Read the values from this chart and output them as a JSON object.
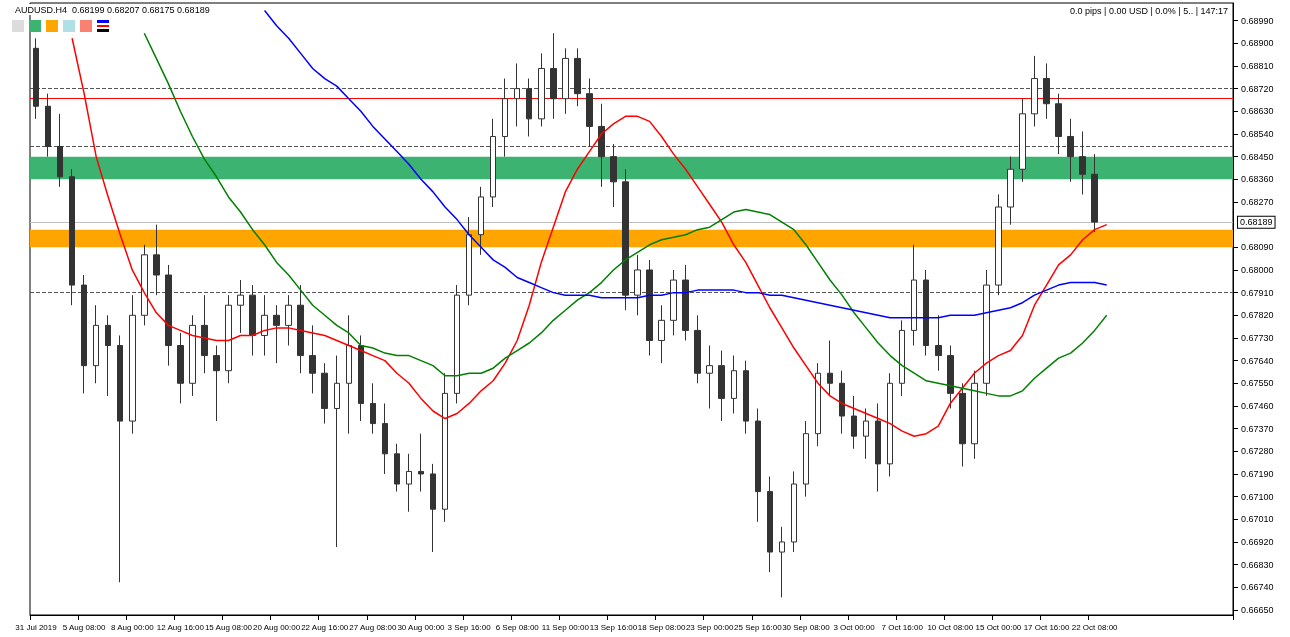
{
  "chart_data": {
    "type": "candlestick",
    "title": "AUDUSD.H4  0.68199 0.68207 0.68175 0.68189",
    "annotations": [
      "0.0 pips | 0.00 USD | 0.0% | 5.. | 147:17"
    ],
    "categories": [
      "31 Jul 2019",
      null,
      null,
      null,
      "5 Aug 08:00",
      null,
      null,
      null,
      "8 Aug 00:00",
      null,
      null,
      null,
      "12 Aug 16:00",
      null,
      null,
      null,
      "15 Aug 08:00",
      null,
      null,
      null,
      "20 Aug 00:00",
      null,
      null,
      null,
      "22 Aug 16:00",
      null,
      null,
      null,
      "27 Aug 08:00",
      null,
      null,
      null,
      "30 Aug 00:00",
      null,
      null,
      null,
      "3 Sep 16:00",
      null,
      null,
      null,
      "6 Sep 08:00",
      null,
      null,
      null,
      "11 Sep 00:00",
      null,
      null,
      null,
      "13 Sep 16:00",
      null,
      null,
      null,
      "18 Sep 08:00",
      null,
      null,
      null,
      "23 Sep 00:00",
      null,
      null,
      null,
      "25 Sep 16:00",
      null,
      null,
      null,
      "30 Sep 08:00",
      null,
      null,
      null,
      "3 Oct 00:00",
      null,
      null,
      null,
      "7 Oct 16:00",
      null,
      null,
      null,
      "10 Oct 08:00",
      null,
      null,
      null,
      "15 Oct 00:00",
      null,
      null,
      null,
      "17 Oct 16:00",
      null,
      null,
      null,
      "22 Oct 08:00",
      null,
      null,
      null,
      null,
      null,
      null,
      null,
      null,
      null,
      null,
      null
    ],
    "color": "#333333",
    "ohlc": [
      [
        0.6888,
        0.6892,
        0.686,
        0.6865
      ],
      [
        0.6865,
        0.687,
        0.6845,
        0.6849
      ],
      [
        0.6849,
        0.6862,
        0.6833,
        0.6837
      ],
      [
        0.6837,
        0.684,
        0.6786,
        0.6794
      ],
      [
        0.6794,
        0.6798,
        0.6751,
        0.6762
      ],
      [
        0.6762,
        0.6786,
        0.6755,
        0.6778
      ],
      [
        0.6778,
        0.6782,
        0.675,
        0.677
      ],
      [
        0.677,
        0.6774,
        0.6676,
        0.674
      ],
      [
        0.674,
        0.679,
        0.6735,
        0.6782
      ],
      [
        0.6782,
        0.681,
        0.6778,
        0.6806
      ],
      [
        0.6806,
        0.6818,
        0.679,
        0.6798
      ],
      [
        0.6798,
        0.6802,
        0.6762,
        0.677
      ],
      [
        0.677,
        0.6775,
        0.6747,
        0.6755
      ],
      [
        0.6755,
        0.6782,
        0.675,
        0.6778
      ],
      [
        0.6778,
        0.679,
        0.6759,
        0.6766
      ],
      [
        0.6766,
        0.677,
        0.674,
        0.676
      ],
      [
        0.676,
        0.679,
        0.6755,
        0.6786
      ],
      [
        0.6786,
        0.6796,
        0.6775,
        0.679
      ],
      [
        0.679,
        0.6794,
        0.6766,
        0.6774
      ],
      [
        0.6774,
        0.679,
        0.6766,
        0.6782
      ],
      [
        0.6782,
        0.6786,
        0.6763,
        0.6778
      ],
      [
        0.6778,
        0.679,
        0.677,
        0.6786
      ],
      [
        0.6786,
        0.6794,
        0.6759,
        0.6766
      ],
      [
        0.6766,
        0.6778,
        0.6751,
        0.6759
      ],
      [
        0.6759,
        0.6763,
        0.6739,
        0.6745
      ],
      [
        0.6745,
        0.6766,
        0.669,
        0.6755
      ],
      [
        0.6755,
        0.6782,
        0.6735,
        0.677
      ],
      [
        0.677,
        0.6774,
        0.674,
        0.6747
      ],
      [
        0.6747,
        0.6755,
        0.6735,
        0.6739
      ],
      [
        0.6739,
        0.6747,
        0.6719,
        0.6727
      ],
      [
        0.6727,
        0.6731,
        0.6712,
        0.6715
      ],
      [
        0.6715,
        0.6727,
        0.6704,
        0.672
      ],
      [
        0.672,
        0.6735,
        0.6712,
        0.6719
      ],
      [
        0.6719,
        0.6723,
        0.6688,
        0.6705
      ],
      [
        0.6705,
        0.6759,
        0.67,
        0.6751
      ],
      [
        0.6751,
        0.6794,
        0.6747,
        0.679
      ],
      [
        0.679,
        0.6821,
        0.6786,
        0.6814
      ],
      [
        0.6814,
        0.6833,
        0.6806,
        0.6829
      ],
      [
        0.6829,
        0.686,
        0.6825,
        0.6853
      ],
      [
        0.6853,
        0.6876,
        0.6845,
        0.6868
      ],
      [
        0.6868,
        0.6882,
        0.6857,
        0.6872
      ],
      [
        0.6872,
        0.6876,
        0.6853,
        0.686
      ],
      [
        0.686,
        0.6886,
        0.6857,
        0.688
      ],
      [
        0.688,
        0.6894,
        0.686,
        0.6868
      ],
      [
        0.6868,
        0.6888,
        0.6862,
        0.6884
      ],
      [
        0.6884,
        0.6888,
        0.6865,
        0.687
      ],
      [
        0.687,
        0.6876,
        0.6849,
        0.6857
      ],
      [
        0.6857,
        0.6866,
        0.6833,
        0.6845
      ],
      [
        0.6845,
        0.685,
        0.6825,
        0.6835
      ],
      [
        0.6835,
        0.684,
        0.6784,
        0.679
      ],
      [
        0.679,
        0.6806,
        0.6782,
        0.68
      ],
      [
        0.68,
        0.6804,
        0.6766,
        0.6772
      ],
      [
        0.6772,
        0.6786,
        0.6763,
        0.678
      ],
      [
        0.678,
        0.68,
        0.6774,
        0.6796
      ],
      [
        0.6796,
        0.6802,
        0.6772,
        0.6776
      ],
      [
        0.6776,
        0.6782,
        0.6755,
        0.6759
      ],
      [
        0.6759,
        0.677,
        0.6745,
        0.6762
      ],
      [
        0.6762,
        0.6768,
        0.674,
        0.6749
      ],
      [
        0.6749,
        0.6766,
        0.6743,
        0.676
      ],
      [
        0.676,
        0.6764,
        0.6735,
        0.674
      ],
      [
        0.674,
        0.6745,
        0.67,
        0.6712
      ],
      [
        0.6712,
        0.6718,
        0.668,
        0.6688
      ],
      [
        0.6688,
        0.6698,
        0.667,
        0.6692
      ],
      [
        0.6692,
        0.672,
        0.6688,
        0.6715
      ],
      [
        0.6715,
        0.674,
        0.671,
        0.6735
      ],
      [
        0.6735,
        0.6763,
        0.673,
        0.6759
      ],
      [
        0.6759,
        0.6772,
        0.675,
        0.6755
      ],
      [
        0.6755,
        0.676,
        0.6735,
        0.6742
      ],
      [
        0.6742,
        0.675,
        0.6729,
        0.6734
      ],
      [
        0.6734,
        0.6745,
        0.6725,
        0.674
      ],
      [
        0.674,
        0.6747,
        0.6712,
        0.6723
      ],
      [
        0.6723,
        0.6759,
        0.6718,
        0.6755
      ],
      [
        0.6755,
        0.678,
        0.675,
        0.6776
      ],
      [
        0.6776,
        0.681,
        0.677,
        0.6796
      ],
      [
        0.6796,
        0.68,
        0.6766,
        0.677
      ],
      [
        0.677,
        0.6782,
        0.676,
        0.6766
      ],
      [
        0.6766,
        0.677,
        0.6745,
        0.6751
      ],
      [
        0.6751,
        0.6755,
        0.6722,
        0.6731
      ],
      [
        0.6731,
        0.676,
        0.6725,
        0.6755
      ],
      [
        0.6755,
        0.68,
        0.675,
        0.6794
      ],
      [
        0.6794,
        0.683,
        0.679,
        0.6825
      ],
      [
        0.6825,
        0.6845,
        0.6818,
        0.684
      ],
      [
        0.684,
        0.6868,
        0.6835,
        0.6862
      ],
      [
        0.6862,
        0.6885,
        0.6857,
        0.6876
      ],
      [
        0.6876,
        0.6882,
        0.686,
        0.6866
      ],
      [
        0.6866,
        0.687,
        0.6846,
        0.6853
      ],
      [
        0.6853,
        0.686,
        0.6835,
        0.6845
      ],
      [
        0.6845,
        0.6855,
        0.683,
        0.6838
      ],
      [
        0.6838,
        0.6846,
        0.6815,
        0.6819
      ],
      null,
      null,
      null,
      null,
      null,
      null,
      null,
      null,
      null,
      null,
      null
    ],
    "series": [
      {
        "type": "line",
        "color": "#ff0000",
        "values": [
          null,
          null,
          null,
          0.6892,
          0.687,
          0.6845,
          0.6829,
          0.6814,
          0.68,
          0.6791,
          0.6783,
          0.6778,
          0.6776,
          0.6774,
          0.6773,
          0.6772,
          0.6772,
          0.6774,
          0.6774,
          0.6776,
          0.6777,
          0.6777,
          0.6776,
          0.6775,
          0.6774,
          0.6772,
          0.677,
          0.6768,
          0.6766,
          0.6764,
          0.6759,
          0.6755,
          0.6749,
          0.6744,
          0.6741,
          0.6743,
          0.6747,
          0.6752,
          0.6756,
          0.6763,
          0.6772,
          0.6786,
          0.6803,
          0.6817,
          0.6831,
          0.684,
          0.6847,
          0.6854,
          0.6858,
          0.6861,
          0.6861,
          0.6859,
          0.6853,
          0.6846,
          0.684,
          0.6833,
          0.6826,
          0.6819,
          0.681,
          0.6803,
          0.6794,
          0.6785,
          0.6777,
          0.6769,
          0.6762,
          0.6755,
          0.675,
          0.6747,
          0.6745,
          0.6743,
          0.6741,
          0.6739,
          0.6736,
          0.6734,
          0.6735,
          0.6738,
          0.6747,
          0.6753,
          0.6759,
          0.6763,
          0.6766,
          0.6768,
          0.6774,
          0.6786,
          0.6794,
          0.6802,
          0.6806,
          0.6812,
          0.6816,
          0.6818,
          null,
          null,
          null,
          null,
          null,
          null,
          null,
          null,
          null,
          null
        ]
      },
      {
        "type": "line",
        "color": "#008000",
        "values": [
          null,
          null,
          null,
          null,
          null,
          null,
          null,
          null,
          null,
          0.6894,
          0.6884,
          0.6874,
          0.6863,
          0.6853,
          0.6844,
          0.6837,
          0.6829,
          0.6823,
          0.6816,
          0.681,
          0.6803,
          0.6798,
          0.6792,
          0.6786,
          0.6782,
          0.6778,
          0.6775,
          0.677,
          0.6769,
          0.6767,
          0.6766,
          0.6766,
          0.6764,
          0.6762,
          0.6758,
          0.6758,
          0.6759,
          0.6759,
          0.6761,
          0.6765,
          0.6768,
          0.6771,
          0.6775,
          0.678,
          0.6784,
          0.6788,
          0.6791,
          0.6795,
          0.68,
          0.6804,
          0.6807,
          0.681,
          0.6812,
          0.6813,
          0.6814,
          0.6816,
          0.6817,
          0.682,
          0.6823,
          0.6824,
          0.6823,
          0.6822,
          0.6819,
          0.6816,
          0.681,
          0.6803,
          0.6796,
          0.679,
          0.6783,
          0.6777,
          0.6771,
          0.6766,
          0.6762,
          0.6759,
          0.6756,
          0.6755,
          0.6754,
          0.6753,
          0.6752,
          0.6751,
          0.675,
          0.675,
          0.6752,
          0.6757,
          0.6761,
          0.6765,
          0.6767,
          0.6771,
          0.6776,
          0.6782,
          null,
          null,
          null,
          null,
          null,
          null,
          null,
          null,
          null,
          null
        ]
      },
      {
        "type": "line",
        "color": "#0000ff",
        "values": [
          null,
          null,
          null,
          null,
          null,
          null,
          null,
          null,
          null,
          null,
          null,
          null,
          null,
          null,
          null,
          null,
          null,
          null,
          null,
          0.6903,
          0.6897,
          0.6892,
          0.6886,
          0.688,
          0.6876,
          0.6873,
          0.6868,
          0.6863,
          0.6857,
          0.6852,
          0.6847,
          0.6842,
          0.6836,
          0.6831,
          0.6825,
          0.682,
          0.6814,
          0.6809,
          0.6804,
          0.6801,
          0.6797,
          0.6795,
          0.6793,
          0.6791,
          0.679,
          0.679,
          0.679,
          0.6789,
          0.6789,
          0.6789,
          0.6789,
          0.679,
          0.679,
          0.6791,
          0.6791,
          0.6792,
          0.6792,
          0.6792,
          0.6792,
          0.6791,
          0.6791,
          0.679,
          0.679,
          0.6789,
          0.6788,
          0.6787,
          0.6786,
          0.6785,
          0.6784,
          0.6783,
          0.6782,
          0.6781,
          0.6781,
          0.6781,
          0.6781,
          0.6781,
          0.6782,
          0.6782,
          0.6782,
          0.6783,
          0.6784,
          0.6785,
          0.6787,
          0.679,
          0.6792,
          0.6794,
          0.6795,
          0.6795,
          0.6795,
          0.6794,
          null,
          null,
          null,
          null,
          null,
          null,
          null,
          null,
          null,
          null
        ]
      }
    ],
    "bands": [
      {
        "axis": "y",
        "from": 0.6836,
        "to": 0.6845,
        "color": "#3cb371"
      },
      {
        "axis": "y",
        "from": 0.6809,
        "to": 0.6816,
        "color": "#ffa500"
      }
    ],
    "ref_lines": [
      {
        "axis": "y",
        "value": 0.6872,
        "color": "#555555",
        "line_style": "dashed"
      },
      {
        "axis": "y",
        "value": 0.6849,
        "color": "#555555",
        "line_style": "dashed"
      },
      {
        "axis": "y",
        "value": 0.6791,
        "color": "#555555",
        "line_style": "dashed"
      },
      {
        "axis": "y",
        "value": 0.6868,
        "color": "#ff0000",
        "line_style": "solid"
      },
      {
        "axis": "y",
        "value": 0.68189,
        "label": "0.68189",
        "color": "#c0c0c0",
        "line_style": "solid"
      }
    ],
    "ylim": [
      0.6663,
      0.6906
    ],
    "yticks": [
      {
        "value": 0.6665,
        "label": "0.66650"
      },
      {
        "value": 0.6674,
        "label": "0.66740"
      },
      {
        "value": 0.6683,
        "label": "0.66830"
      },
      {
        "value": 0.6692,
        "label": "0.66920"
      },
      {
        "value": 0.6701,
        "label": "0.67010"
      },
      {
        "value": 0.671,
        "label": "0.67100"
      },
      {
        "value": 0.6719,
        "label": "0.67190"
      },
      {
        "value": 0.6728,
        "label": "0.67280"
      },
      {
        "value": 0.6737,
        "label": "0.67370"
      },
      {
        "value": 0.6746,
        "label": "0.67460"
      },
      {
        "value": 0.6755,
        "label": "0.67550"
      },
      {
        "value": 0.6764,
        "label": "0.67640"
      },
      {
        "value": 0.6773,
        "label": "0.67730"
      },
      {
        "value": 0.6782,
        "label": "0.67820"
      },
      {
        "value": 0.6791,
        "label": "0.67910"
      },
      {
        "value": 0.68,
        "label": "0.68000"
      },
      {
        "value": 0.6809,
        "label": "0.68090"
      },
      {
        "value": 0.6827,
        "label": "0.68270"
      },
      {
        "value": 0.6836,
        "label": "0.68360"
      },
      {
        "value": 0.6845,
        "label": "0.68450"
      },
      {
        "value": 0.6854,
        "label": "0.68540"
      },
      {
        "value": 0.6863,
        "label": "0.68630"
      },
      {
        "value": 0.6872,
        "label": "0.68720"
      },
      {
        "value": 0.6881,
        "label": "0.68810"
      },
      {
        "value": 0.689,
        "label": "0.68900"
      },
      {
        "value": 0.6899,
        "label": "0.68990"
      }
    ],
    "marker": "none",
    "line_style": "solid"
  }
}
